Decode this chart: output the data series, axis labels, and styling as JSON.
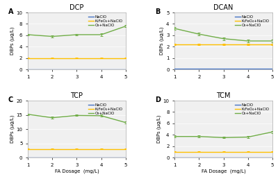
{
  "x": [
    1,
    2,
    3,
    4,
    5
  ],
  "panels": {
    "A": {
      "title": "DCP",
      "ylim": [
        0,
        10
      ],
      "yticks": [
        0,
        2,
        4,
        6,
        8,
        10
      ],
      "NaClO": [
        0.05,
        0.05,
        0.05,
        0.05,
        0.05
      ],
      "K2FeO4": [
        2.0,
        2.0,
        2.0,
        2.0,
        2.0
      ],
      "O3": [
        6.1,
        5.8,
        6.1,
        6.1,
        7.6
      ],
      "O3_err": [
        0.15,
        0.15,
        0.18,
        0.2,
        0.2
      ],
      "K2FeO4_err": [
        0.05,
        0.05,
        0.05,
        0.05,
        0.05
      ]
    },
    "B": {
      "title": "DCAN",
      "ylim": [
        0,
        5
      ],
      "yticks": [
        0,
        1,
        2,
        3,
        4,
        5
      ],
      "NaClO": [
        0.05,
        0.05,
        0.05,
        0.05,
        0.05
      ],
      "K2FeO4": [
        2.2,
        2.2,
        2.2,
        2.2,
        2.2
      ],
      "O3": [
        3.6,
        3.1,
        2.7,
        2.5,
        2.5
      ],
      "O3_err": [
        0.12,
        0.12,
        0.12,
        0.12,
        0.12
      ],
      "K2FeO4_err": [
        0.05,
        0.05,
        0.05,
        0.05,
        0.05
      ]
    },
    "C": {
      "title": "TCP",
      "ylim": [
        0,
        20
      ],
      "yticks": [
        0,
        5,
        10,
        15,
        20
      ],
      "NaClO": [
        0.1,
        0.1,
        0.1,
        0.1,
        0.1
      ],
      "K2FeO4": [
        3.0,
        3.0,
        3.0,
        3.0,
        3.0
      ],
      "O3": [
        15.2,
        14.0,
        14.8,
        14.7,
        12.3
      ],
      "O3_err": [
        0.3,
        0.3,
        0.25,
        0.35,
        0.3
      ],
      "K2FeO4_err": [
        0.1,
        0.1,
        0.1,
        0.1,
        0.1
      ]
    },
    "D": {
      "title": "TCM",
      "ylim": [
        0,
        10
      ],
      "yticks": [
        0,
        2,
        4,
        6,
        8,
        10
      ],
      "NaClO": [
        0.05,
        0.05,
        0.05,
        0.05,
        0.05
      ],
      "K2FeO4": [
        1.0,
        1.0,
        1.0,
        1.0,
        1.0
      ],
      "O3": [
        3.7,
        3.7,
        3.5,
        3.6,
        4.5
      ],
      "O3_err": [
        0.15,
        0.15,
        0.12,
        0.15,
        0.2
      ],
      "K2FeO4_err": [
        0.05,
        0.05,
        0.05,
        0.05,
        0.05
      ]
    }
  },
  "colors": {
    "NaClO": "#4472C4",
    "K2FeO4": "#FFC000",
    "O3": "#70AD47"
  },
  "legend_labels": [
    "NaClO",
    "K₂FeO₄+NaClO",
    "O₃+NaClO"
  ],
  "xlabel": "FA Dosage  (mg/L)",
  "ylabel": "DBPs (μg/L)",
  "background_color": "#f0f0f0",
  "panel_order": [
    "A",
    "B",
    "C",
    "D"
  ]
}
